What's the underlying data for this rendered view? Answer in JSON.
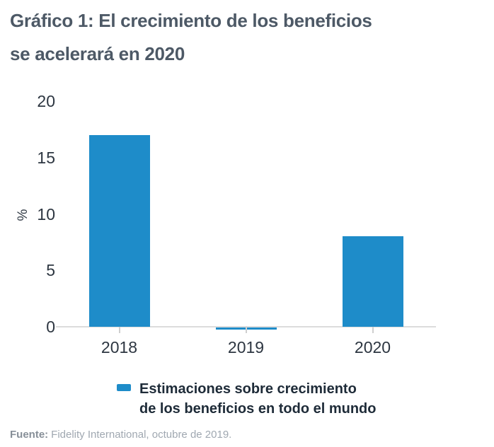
{
  "title": {
    "line1": "Gráfico 1: El crecimiento de los beneficios",
    "line2": "se acelerará en 2020"
  },
  "chart_data": {
    "type": "bar",
    "categories": [
      "2018",
      "2019",
      "2020"
    ],
    "values": [
      17,
      -0.2,
      8
    ],
    "title": "Gráfico 1: El crecimiento de los beneficios se acelerará en 2020",
    "xlabel": "",
    "ylabel": "%",
    "ylim": [
      0,
      20
    ],
    "yticks": [
      0,
      5,
      10,
      15,
      20
    ],
    "grid": false,
    "legend_position": "bottom",
    "legend": {
      "line1": "Estimaciones sobre crecimiento",
      "line2": "de los beneficios en todo el mundo"
    },
    "bar_color": "#1E8CC9"
  },
  "colors": {
    "bar": "#1E8CC9",
    "title_text": "#4D5966",
    "legend_text": "#1E2B38",
    "axis_text": "#2D3641",
    "axis_line": "#DCDCDC",
    "footer_text": "#A0A8B1"
  },
  "footer": {
    "label": "Fuente:",
    "text": "Fidelity International, octubre de 2019."
  }
}
